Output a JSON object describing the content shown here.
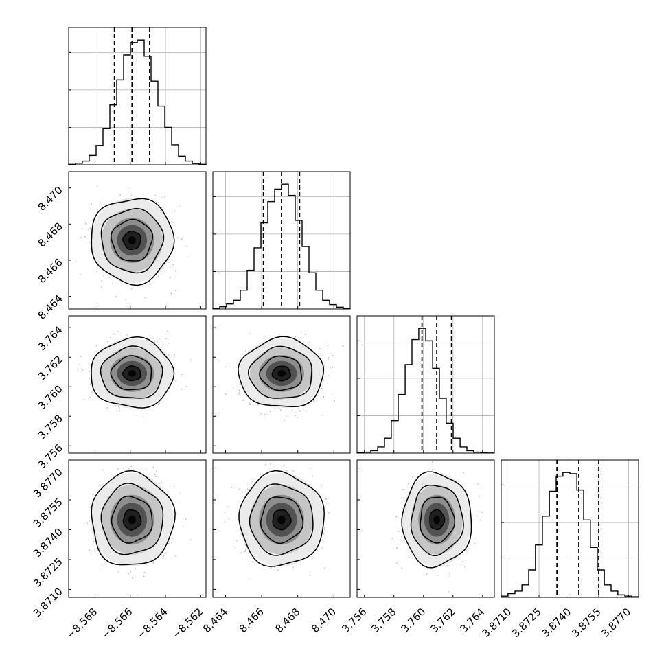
{
  "chart_data": {
    "type": "corner",
    "grid": true,
    "hist_style": "step",
    "title": "",
    "parameters": [
      {
        "label": "",
        "range": [
          -8.5695,
          -8.5617
        ],
        "ticks": [
          -8.568,
          -8.566,
          -8.564,
          -8.562
        ],
        "tick_labels": [
          "−8.568",
          "−8.566",
          "−8.564",
          "−8.562"
        ],
        "mean": -8.5659,
        "sd": 0.001,
        "quantiles": [
          -8.5669,
          -8.5659,
          -8.5649
        ],
        "hist_bin_edges": [
          -8.5695,
          -8.56911,
          -8.56872,
          -8.56833,
          -8.56794,
          -8.56755,
          -8.56716,
          -8.56677,
          -8.56638,
          -8.56599,
          -8.5656,
          -8.56521,
          -8.56482,
          -8.56443,
          -8.56404,
          -8.56365,
          -8.56326,
          -8.56287,
          -8.56248,
          -8.56209,
          -8.5617
        ],
        "hist_counts": [
          0.004,
          0.012,
          0.03,
          0.075,
          0.155,
          0.29,
          0.48,
          0.68,
          0.88,
          0.98,
          1.0,
          0.87,
          0.67,
          0.47,
          0.3,
          0.16,
          0.07,
          0.03,
          0.01,
          0.004
        ]
      },
      {
        "label": "",
        "range": [
          8.4633,
          8.4709
        ],
        "ticks": [
          8.464,
          8.466,
          8.468,
          8.47
        ],
        "tick_labels": [
          "8.464",
          "8.466",
          "8.468",
          "8.470"
        ],
        "mean": 8.4671,
        "sd": 0.001,
        "quantiles": [
          8.4661,
          8.4671,
          8.4681
        ],
        "hist_bin_edges": [
          8.4633,
          8.46368,
          8.46406,
          8.46444,
          8.46482,
          8.4652,
          8.46558,
          8.46596,
          8.46634,
          8.46672,
          8.4671,
          8.46748,
          8.46786,
          8.46824,
          8.46862,
          8.469,
          8.46938,
          8.46976,
          8.47014,
          8.47052,
          8.4709
        ],
        "hist_counts": [
          0.006,
          0.018,
          0.04,
          0.07,
          0.15,
          0.31,
          0.49,
          0.69,
          0.86,
          0.96,
          1.0,
          0.91,
          0.71,
          0.5,
          0.29,
          0.15,
          0.07,
          0.035,
          0.015,
          0.006
        ]
      },
      {
        "label": "",
        "range": [
          3.7555,
          3.7648
        ],
        "ticks": [
          3.756,
          3.758,
          3.76,
          3.762,
          3.764
        ],
        "tick_labels": [
          "3.756",
          "3.758",
          "3.760",
          "3.762",
          "3.764"
        ],
        "mean": 3.7609,
        "sd": 0.001,
        "quantiles": [
          3.7599,
          3.7609,
          3.7619
        ],
        "hist_bin_edges": [
          3.7555,
          3.75596,
          3.75643,
          3.7569,
          3.75736,
          3.75782,
          3.75829,
          3.75876,
          3.75922,
          3.75968,
          3.76015,
          3.76062,
          3.76108,
          3.76154,
          3.76201,
          3.76248,
          3.76294,
          3.7634,
          3.76387,
          3.76434,
          3.7648
        ],
        "hist_counts": [
          0.003,
          0.008,
          0.02,
          0.05,
          0.12,
          0.26,
          0.47,
          0.71,
          0.91,
          1.0,
          0.9,
          0.68,
          0.44,
          0.24,
          0.12,
          0.05,
          0.02,
          0.008,
          0.003,
          0.001
        ]
      },
      {
        "label": "",
        "range": [
          3.8706,
          3.8775
        ],
        "ticks": [
          3.871,
          3.8725,
          3.874,
          3.8755,
          3.877
        ],
        "tick_labels": [
          "3.8710",
          "3.8725",
          "3.8740",
          "3.8755",
          "3.8770"
        ],
        "mean": 3.8745,
        "sd": 0.001,
        "quantiles": [
          3.8734,
          3.8745,
          3.8755
        ],
        "hist_bin_edges": [
          3.8706,
          3.87094,
          3.87129,
          3.87164,
          3.87198,
          3.87232,
          3.87267,
          3.87302,
          3.87336,
          3.8737,
          3.87405,
          3.8744,
          3.87474,
          3.87508,
          3.87543,
          3.87578,
          3.87612,
          3.87646,
          3.87681,
          3.87716,
          3.8775
        ],
        "hist_counts": [
          0.01,
          0.03,
          0.05,
          0.1,
          0.22,
          0.42,
          0.65,
          0.85,
          0.97,
          1.0,
          0.99,
          0.86,
          0.62,
          0.4,
          0.22,
          0.1,
          0.05,
          0.02,
          0.01,
          0.005
        ]
      }
    ]
  },
  "colors": {
    "line": "#000000",
    "grid": "#b0b0b0",
    "scatter": "#8c8c8c",
    "density_dark": "#000000",
    "background": "#ffffff"
  }
}
